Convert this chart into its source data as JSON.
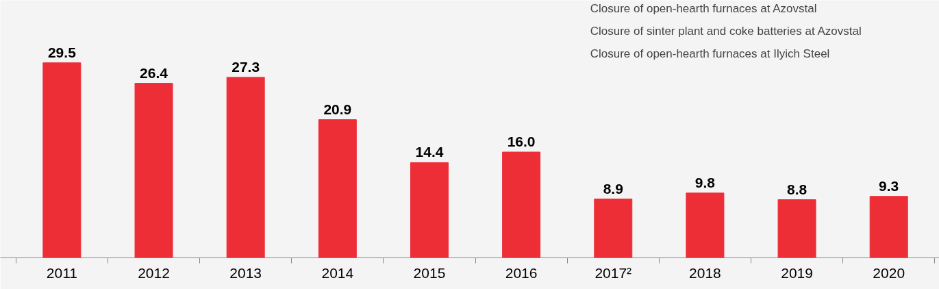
{
  "chart_data": {
    "type": "bar",
    "categories": [
      "2011",
      "2012",
      "2013",
      "2014",
      "2015",
      "2016",
      "2017²",
      "2018",
      "2019",
      "2020"
    ],
    "values": [
      29.5,
      26.4,
      27.3,
      20.9,
      14.4,
      16.0,
      8.9,
      9.8,
      8.8,
      9.3
    ],
    "value_labels": [
      "29.5",
      "26.4",
      "27.3",
      "20.9",
      "14.4",
      "16.0",
      "8.9",
      "9.8",
      "8.8",
      "9.3"
    ],
    "color": "#ee2e37",
    "grid": false,
    "annotations": [
      "Closure of open-hearth furnaces at Azovstal",
      "Closure of sinter plant and coke batteries at Azovstal",
      "Closure of open-hearth furnaces at Ilyich Steel"
    ]
  }
}
